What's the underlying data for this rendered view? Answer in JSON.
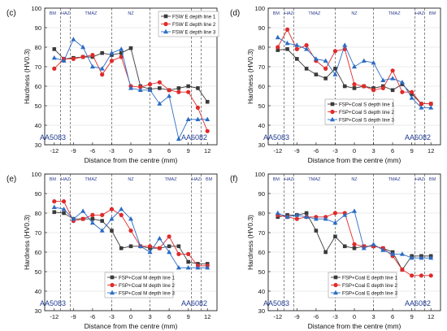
{
  "chart_data": [
    {
      "type": "line",
      "panel_label": "(c)",
      "ylabel": "Hardness (HV0.3)",
      "xlabel": "Distance from the centre (mm)",
      "xlim": [
        -13.5,
        13.5
      ],
      "ylim": [
        30,
        100
      ],
      "xticks": [
        -12,
        -9,
        -6,
        -3,
        0,
        3,
        6,
        9,
        12
      ],
      "yticks": [
        30,
        40,
        50,
        60,
        70,
        80,
        90,
        100
      ],
      "zone_boundaries": [
        -11,
        -9.5,
        -3,
        3,
        9.5,
        11
      ],
      "zones": [
        "BM",
        "HAZ",
        "TMAZ",
        "NZ",
        "TMAZ",
        "HAZ",
        "BM"
      ],
      "left_material": "AA5083",
      "right_material": "AA6082",
      "legend_position": "top-right",
      "x": [
        -12,
        -10.5,
        -9,
        -7.5,
        -6,
        -4.5,
        -3,
        -1.5,
        0,
        1.5,
        3,
        4.5,
        6,
        7.5,
        9,
        10.5,
        12
      ],
      "series": [
        {
          "name": "FSW E depth line 1",
          "color": "#3a3a3a",
          "marker": "square",
          "values": [
            79,
            74,
            74.5,
            75,
            75,
            77,
            76,
            77,
            79.5,
            60,
            58.5,
            59,
            58,
            59,
            60,
            59,
            52
          ]
        },
        {
          "name": "FSW E depth line 2",
          "color": "#e02b2b",
          "marker": "circle",
          "values": [
            69,
            74,
            74,
            75,
            76,
            66,
            73,
            75,
            60,
            59.5,
            61,
            62,
            58,
            57,
            57,
            49,
            37
          ]
        },
        {
          "name": "FSW E depth line 3",
          "color": "#2b6cc4",
          "marker": "triangle",
          "values": [
            74.5,
            73,
            84,
            80,
            70,
            69,
            77,
            79,
            59,
            58,
            58,
            51,
            55,
            33,
            43,
            43,
            43
          ]
        }
      ]
    },
    {
      "type": "line",
      "panel_label": "(d)",
      "ylabel": "Hardness (HV0.3)",
      "xlabel": "Distance from the centre (mm)",
      "xlim": [
        -13.5,
        13.5
      ],
      "ylim": [
        30,
        100
      ],
      "xticks": [
        -12,
        -9,
        -6,
        -3,
        0,
        3,
        6,
        9,
        12
      ],
      "yticks": [
        30,
        40,
        50,
        60,
        70,
        80,
        90,
        100
      ],
      "zone_boundaries": [
        -11,
        -9.5,
        -3,
        3,
        9.5,
        11
      ],
      "zones": [
        "BM",
        "HAZ",
        "TMAZ",
        "NZ",
        "TMAZ",
        "HAZ",
        "BM"
      ],
      "left_material": "AA5083",
      "right_material": "AA6082",
      "legend_position": "bottom-center",
      "x": [
        -12,
        -10.5,
        -9,
        -7.5,
        -6,
        -4.5,
        -3,
        -1.5,
        0,
        1.5,
        3,
        4.5,
        6,
        7.5,
        9,
        10.5,
        12
      ],
      "series": [
        {
          "name": "FSP+Coal S depth line 1",
          "color": "#3a3a3a",
          "marker": "square",
          "values": [
            78.5,
            79,
            74,
            69,
            66,
            64,
            69,
            60,
            59,
            60,
            59,
            60,
            58,
            61,
            56,
            51,
            51
          ]
        },
        {
          "name": "FSP+Coal S depth line 2",
          "color": "#e02b2b",
          "marker": "circle",
          "values": [
            80,
            89,
            79,
            81,
            73,
            69,
            78,
            79,
            61,
            60,
            58,
            59,
            68,
            57,
            57,
            51,
            51
          ]
        },
        {
          "name": "FSP+Coal S depth line 3",
          "color": "#2b6cc4",
          "marker": "triangle",
          "values": [
            85,
            82,
            81,
            79,
            74,
            73,
            66,
            81,
            70,
            73,
            72,
            63,
            64,
            62,
            54,
            49,
            49
          ]
        }
      ]
    },
    {
      "type": "line",
      "panel_label": "(e)",
      "ylabel": "Hardness (HV0.3)",
      "xlabel": "Distance from the centre (mm)",
      "xlim": [
        -13.5,
        13.5
      ],
      "ylim": [
        30,
        100
      ],
      "xticks": [
        -12,
        -9,
        -6,
        -3,
        0,
        3,
        6,
        9,
        12
      ],
      "yticks": [
        30,
        40,
        50,
        60,
        70,
        80,
        90,
        100
      ],
      "zone_boundaries": [
        -11,
        -9.5,
        -3,
        3,
        9.5,
        11
      ],
      "zones": [
        "BM",
        "HAZ",
        "TMAZ",
        "NZ",
        "TMAZ",
        "HAZ",
        "BM"
      ],
      "left_material": "AA5083",
      "right_material": "AA6082",
      "legend_position": "bottom-right",
      "x": [
        -12,
        -10.5,
        -9,
        -7.5,
        -6,
        -4.5,
        -3,
        -1.5,
        0,
        1.5,
        3,
        4.5,
        6,
        7.5,
        9,
        10.5,
        12
      ],
      "series": [
        {
          "name": "FSP+Coal M depth line 1",
          "color": "#3a3a3a",
          "marker": "square",
          "values": [
            80.5,
            80,
            77,
            77,
            77,
            76,
            71,
            62,
            63,
            63,
            62,
            62,
            63,
            63,
            55,
            54,
            54
          ]
        },
        {
          "name": "FSP+Coal M depth line 2",
          "color": "#e02b2b",
          "marker": "circle",
          "values": [
            86,
            86,
            76,
            77,
            79,
            79,
            82,
            79,
            71,
            63,
            63,
            62,
            68,
            59,
            59,
            53,
            53
          ]
        },
        {
          "name": "FSP+Coal M depth line 3",
          "color": "#2b6cc4",
          "marker": "triangle",
          "values": [
            83,
            82,
            77,
            81,
            75,
            71,
            77,
            82,
            77,
            63,
            60,
            67,
            60,
            52,
            52,
            52,
            52
          ]
        }
      ]
    },
    {
      "type": "line",
      "panel_label": "(f)",
      "ylabel": "Hardness (HV0.3)",
      "xlabel": "Distance from the centre (mm)",
      "xlim": [
        -13.5,
        13.5
      ],
      "ylim": [
        30,
        100
      ],
      "xticks": [
        -12,
        -9,
        -6,
        -3,
        0,
        3,
        6,
        9,
        12
      ],
      "yticks": [
        30,
        40,
        50,
        60,
        70,
        80,
        90,
        100
      ],
      "zone_boundaries": [
        -11,
        -9.5,
        -3,
        3,
        9.5,
        11
      ],
      "zones": [
        "BM",
        "HAZ",
        "TMAZ",
        "NZ",
        "TMAZ",
        "HAZ",
        "BM"
      ],
      "left_material": "AA5083",
      "right_material": "AA6082",
      "legend_position": "bottom-right",
      "x": [
        -12,
        -10.5,
        -9,
        -7.5,
        -6,
        -4.5,
        -3,
        -1.5,
        0,
        1.5,
        3,
        4.5,
        6,
        7.5,
        9,
        10.5,
        12
      ],
      "series": [
        {
          "name": "FSP+Coal E depth line 1",
          "color": "#3a3a3a",
          "marker": "square",
          "values": [
            78,
            79,
            79,
            80,
            71,
            60,
            68,
            63,
            62,
            63,
            63,
            62,
            60,
            51,
            58,
            58,
            58
          ]
        },
        {
          "name": "FSP+Coal E depth line 2",
          "color": "#e02b2b",
          "marker": "circle",
          "values": [
            79,
            78,
            77,
            78,
            78,
            78,
            80,
            80,
            64,
            63,
            63,
            62,
            58,
            51,
            48,
            48,
            48
          ]
        },
        {
          "name": "FSP+Coal E depth line 3",
          "color": "#2b6cc4",
          "marker": "triangle",
          "values": [
            80,
            78,
            79,
            78,
            77,
            77,
            75,
            79,
            81,
            62,
            64,
            61,
            59,
            59,
            57,
            57,
            57
          ]
        }
      ]
    }
  ]
}
